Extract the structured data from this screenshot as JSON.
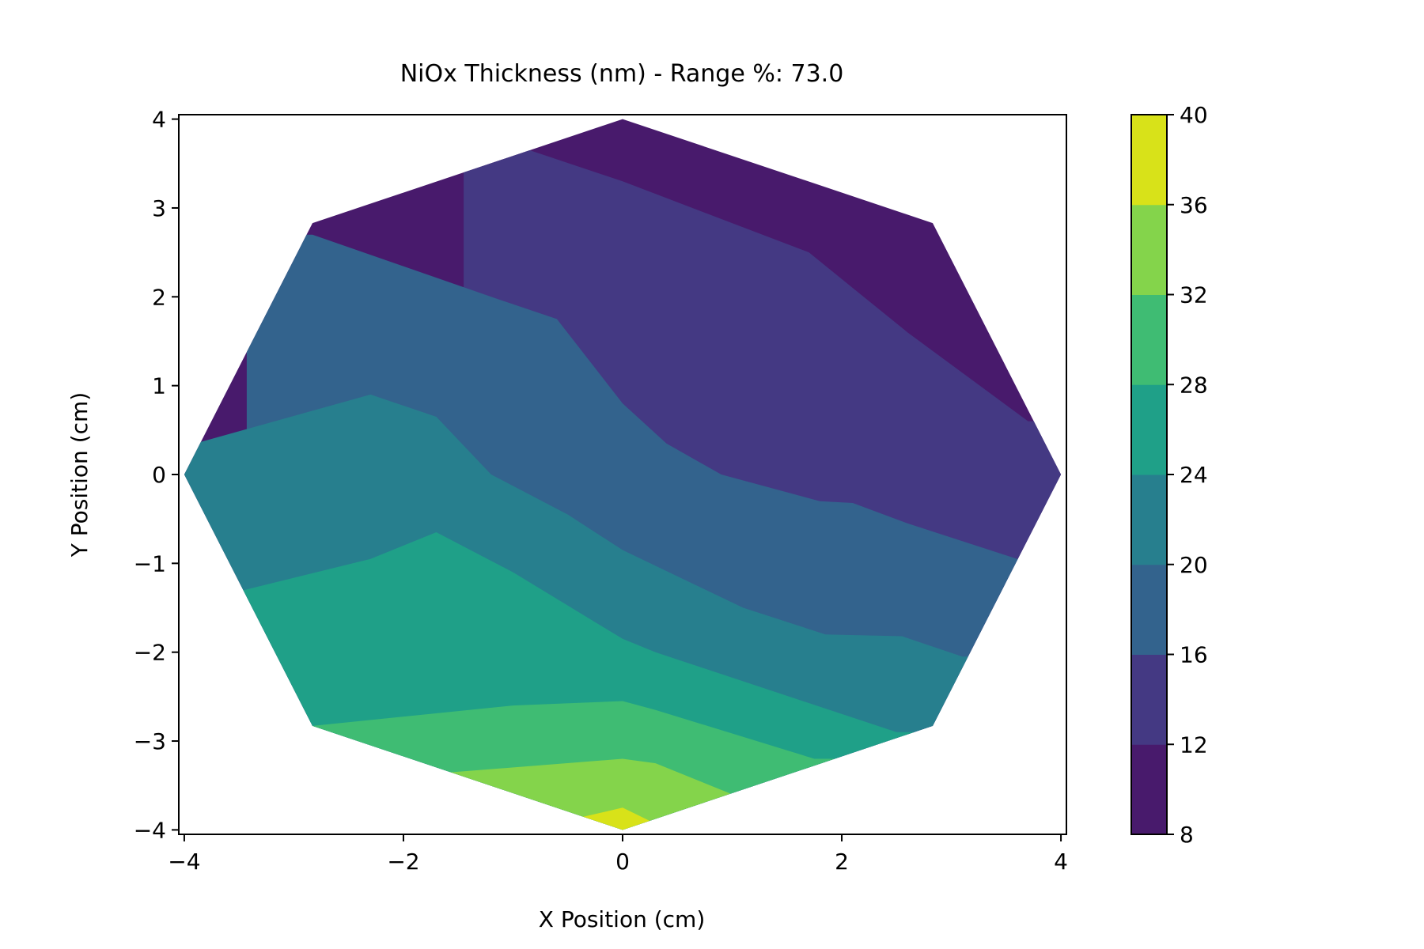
{
  "chart_data": {
    "type": "contourf",
    "title": "NiOx Thickness (nm) - Range %: 73.0",
    "xlabel": "X Position (cm)",
    "ylabel": "Y Position (cm)",
    "xlim": [
      -4.05,
      4.05
    ],
    "ylim": [
      -4.05,
      4.05
    ],
    "xticks": [
      -4,
      -2,
      0,
      2,
      4
    ],
    "xtick_labels": [
      "−4",
      "−2",
      "0",
      "2",
      "4"
    ],
    "yticks": [
      4,
      3,
      2,
      1,
      0,
      -1,
      -2,
      -3,
      -4
    ],
    "ytick_labels": [
      "4",
      "3",
      "2",
      "1",
      "0",
      "−1",
      "−2",
      "−3",
      "−4"
    ],
    "colorbar": {
      "levels": [
        8,
        12,
        16,
        20,
        24,
        28,
        32,
        36,
        40
      ],
      "tick_labels": [
        "8",
        "12",
        "16",
        "20",
        "24",
        "28",
        "32",
        "36",
        "40"
      ],
      "colors": [
        "#481a6c",
        "#443983",
        "#33638d",
        "#277f8e",
        "#1fa088",
        "#3fbc73",
        "#84d44b",
        "#d8e219"
      ]
    },
    "boundary": [
      [
        0,
        4
      ],
      [
        2.83,
        2.83
      ],
      [
        4,
        0
      ],
      [
        2.83,
        -2.83
      ],
      [
        0,
        -4
      ],
      [
        -2.83,
        -2.83
      ],
      [
        -4,
        0
      ],
      [
        -2.83,
        2.83
      ]
    ],
    "contour_lines": [
      {
        "level": 12,
        "points": [
          [
            -0.85,
            3.65
          ],
          [
            0,
            3.3
          ],
          [
            1.7,
            2.5
          ],
          [
            2.1,
            2.1
          ],
          [
            2.6,
            1.6
          ],
          [
            3.7,
            0.6
          ]
        ]
      },
      {
        "level": 16,
        "points": [
          [
            -2.83,
            2.7
          ],
          [
            -1.2,
            2.0
          ],
          [
            -0.6,
            1.75
          ],
          [
            0,
            0.8
          ],
          [
            0.4,
            0.35
          ],
          [
            0.9,
            0.0
          ],
          [
            1.8,
            -0.3
          ],
          [
            2.1,
            -0.32
          ],
          [
            2.6,
            -0.55
          ],
          [
            3.6,
            -0.95
          ]
        ]
      },
      {
        "level": 20,
        "points": [
          [
            -3.9,
            0.35
          ],
          [
            -2.3,
            0.9
          ],
          [
            -1.7,
            0.65
          ],
          [
            -1.2,
            0.0
          ],
          [
            -0.5,
            -0.45
          ],
          [
            0,
            -0.85
          ],
          [
            1.1,
            -1.5
          ],
          [
            1.85,
            -1.8
          ],
          [
            2.55,
            -1.82
          ],
          [
            3.1,
            -2.05
          ]
        ]
      },
      {
        "level": 24,
        "points": [
          [
            -3.45,
            -1.3
          ],
          [
            -2.3,
            -0.95
          ],
          [
            -1.7,
            -0.65
          ],
          [
            -1.0,
            -1.1
          ],
          [
            0,
            -1.85
          ],
          [
            0.3,
            -2.0
          ],
          [
            2.5,
            -2.9
          ]
        ]
      },
      {
        "level": 28,
        "points": [
          [
            -2.83,
            -2.83
          ],
          [
            -1.0,
            -2.6
          ],
          [
            0,
            -2.55
          ],
          [
            0.3,
            -2.65
          ],
          [
            1.75,
            -3.2
          ]
        ]
      },
      {
        "level": 32,
        "points": [
          [
            -1.55,
            -3.35
          ],
          [
            0,
            -3.2
          ],
          [
            0.3,
            -3.25
          ],
          [
            1.0,
            -3.6
          ]
        ]
      },
      {
        "level": 36,
        "points": [
          [
            -0.35,
            -3.85
          ],
          [
            0,
            -3.75
          ],
          [
            0.25,
            -3.9
          ]
        ]
      }
    ]
  }
}
